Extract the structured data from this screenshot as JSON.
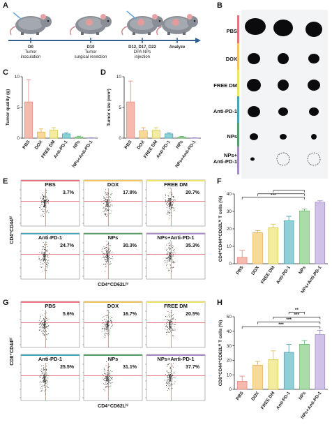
{
  "panel_labels": {
    "A": "A",
    "B": "B",
    "C": "C",
    "D": "D",
    "E": "E",
    "F": "F",
    "G": "G",
    "H": "H"
  },
  "timeline": [
    {
      "day": "D0",
      "desc": "Tumor\ninoculation"
    },
    {
      "day": "D10",
      "desc": "Tumor\nsurgical resection"
    },
    {
      "day": "D12, D17, D22",
      "desc": "DPA NPs\ninjection"
    },
    {
      "day": "Analyze",
      "desc": ""
    }
  ],
  "tumor_groups": [
    {
      "label": "PBS",
      "color": "#e8747c"
    },
    {
      "label": "DOX",
      "color": "#f2c462"
    },
    {
      "label": "FREE DM",
      "color": "#f0e36a"
    },
    {
      "label": "Anti-PD-1",
      "color": "#4aa6b8"
    },
    {
      "label": "NPs",
      "color": "#5aa06a"
    },
    {
      "label": "NPs+\nAnti-PD-1",
      "color": "#a98bc8"
    }
  ],
  "bar_colors": [
    "#f6b9ae",
    "#f8d99a",
    "#f3ec9c",
    "#8fd0d6",
    "#a9dca6",
    "#cfc2e6"
  ],
  "bar_edges": [
    "#e2847a",
    "#e0a94a",
    "#d2c54a",
    "#3f9fae",
    "#5fae60",
    "#9c84c8"
  ],
  "chart_data": [
    {
      "type": "bar",
      "ylabel": "Tumor quality (g)",
      "categories": [
        "PBS",
        "DOX",
        "FREE DM",
        "Anti-PD-1",
        "NPs",
        "NPs+Anti-PD-1"
      ],
      "values": [
        5.9,
        1.0,
        1.3,
        0.7,
        0.2,
        0.05
      ],
      "errors": [
        3.6,
        0.5,
        0.4,
        0.15,
        0.12,
        0.03
      ],
      "ylim": [
        0,
        10
      ],
      "yticks": [
        0,
        5,
        10
      ]
    },
    {
      "type": "bar",
      "ylabel": "Tumor size (mm³)",
      "categories": [
        "PBS",
        "DOX",
        "FREE DM",
        "Anti-PD-1",
        "NPs",
        "NPs+Anti-PD-1"
      ],
      "values": [
        5.9,
        1.2,
        1.3,
        0.7,
        0.2,
        0.05
      ],
      "errors": [
        3.4,
        0.5,
        0.4,
        0.15,
        0.1,
        0.03
      ],
      "ylim": [
        0,
        10
      ],
      "yticks": [
        0,
        5,
        10
      ]
    },
    {
      "type": "bar",
      "ylabel": "CD4⁺CD44⁺CD62Lʰⁱ T cells (%)",
      "categories": [
        "PBS",
        "DOX",
        "FREE DM",
        "Anti-PD-1",
        "NPs",
        "NPs+Anti-PD-1"
      ],
      "values": [
        3.7,
        17.8,
        20.7,
        24.7,
        30.3,
        35.3
      ],
      "errors": [
        4.0,
        1.2,
        2.0,
        2.5,
        1.0,
        0.8
      ],
      "ylim": [
        0,
        40
      ],
      "yticks": [
        0,
        10,
        20,
        30,
        40
      ],
      "significance": [
        {
          "from": 0,
          "to": 4,
          "label": "***"
        },
        {
          "from": 1,
          "to": 4,
          "label": ""
        },
        {
          "from": 2,
          "to": 4,
          "label": ""
        }
      ]
    },
    {
      "type": "bar",
      "ylabel": "CD8⁺CD44⁺CD62Lʰⁱ T cells (%)",
      "categories": [
        "PBS",
        "DOX",
        "FREE DM",
        "Anti-PD-1",
        "NPs",
        "NPs+Anti-PD-1"
      ],
      "values": [
        5.6,
        16.7,
        20.5,
        25.5,
        31.1,
        37.7
      ],
      "errors": [
        3.5,
        2.5,
        6.0,
        5.5,
        2.5,
        3.0
      ],
      "ylim": [
        0,
        50
      ],
      "yticks": [
        0,
        10,
        20,
        30,
        40,
        50
      ],
      "significance": [
        {
          "from": 0,
          "to": 5,
          "label": "***"
        },
        {
          "from": 1,
          "to": 5,
          "label": "***"
        },
        {
          "from": 2,
          "to": 5,
          "label": "***"
        },
        {
          "from": 3,
          "to": 4,
          "label": "**"
        }
      ]
    }
  ],
  "flow_E": {
    "ylabel": "CD4⁺CD44ʰⁱ",
    "xlabel": "CD4⁺CD62Lʰⁱ",
    "panels": [
      {
        "name": "PBS",
        "pct": "3.7%"
      },
      {
        "name": "DOX",
        "pct": "17.8%"
      },
      {
        "name": "FREE DM",
        "pct": "20.7%"
      },
      {
        "name": "Anti-PD-1",
        "pct": "24.7%"
      },
      {
        "name": "NPs",
        "pct": "30.3%"
      },
      {
        "name": "NPs+Anti-PD-1",
        "pct": "35.3%"
      }
    ]
  },
  "flow_G": {
    "ylabel": "CD8⁺CD44ʰⁱ",
    "xlabel": "CD4⁺CD62Lʰⁱ",
    "panels": [
      {
        "name": "PBS",
        "pct": "5.6%"
      },
      {
        "name": "DOX",
        "pct": "16.7%"
      },
      {
        "name": "FREE DM",
        "pct": "20.5%"
      },
      {
        "name": "Anti-PD-1",
        "pct": "25.5%"
      },
      {
        "name": "NPs",
        "pct": "31.1%"
      },
      {
        "name": "NPs+Anti-PD-1",
        "pct": "37.7%"
      }
    ]
  }
}
